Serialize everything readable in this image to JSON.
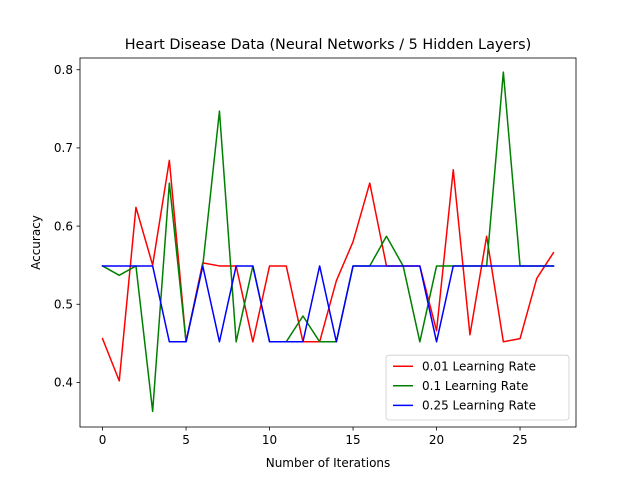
{
  "chart_data": {
    "type": "line",
    "title": "Heart Disease Data (Neural Networks / 5 Hidden Layers)",
    "xlabel": "Number of Iterations",
    "ylabel": "Accuracy",
    "xlim": [
      -1.35,
      28.35
    ],
    "ylim": [
      0.343,
      0.815
    ],
    "xticks": [
      0,
      5,
      10,
      15,
      20,
      25
    ],
    "yticks": [
      0.4,
      0.5,
      0.6,
      0.7,
      0.8
    ],
    "ytick_labels": [
      "0.4",
      "0.5",
      "0.6",
      "0.7",
      "0.8"
    ],
    "grid": false,
    "legend_position": "lower right",
    "x": [
      0,
      1,
      2,
      3,
      4,
      5,
      6,
      7,
      8,
      9,
      10,
      11,
      12,
      13,
      14,
      15,
      16,
      17,
      18,
      19,
      20,
      21,
      22,
      23,
      24,
      25,
      26,
      27
    ],
    "series": [
      {
        "name": "0.01 Learning Rate",
        "color": "#ff0000",
        "values": [
          0.456,
          0.402,
          0.624,
          0.55,
          0.684,
          0.452,
          0.553,
          0.549,
          0.549,
          0.452,
          0.549,
          0.549,
          0.452,
          0.452,
          0.53,
          0.58,
          0.655,
          0.549,
          0.549,
          0.549,
          0.466,
          0.672,
          0.461,
          0.587,
          0.452,
          0.456,
          0.533,
          0.566
        ]
      },
      {
        "name": "0.1 Learning Rate",
        "color": "#008000",
        "values": [
          0.549,
          0.537,
          0.549,
          0.363,
          0.655,
          0.452,
          0.549,
          0.747,
          0.452,
          0.549,
          0.452,
          0.452,
          0.485,
          0.452,
          0.452,
          0.549,
          0.549,
          0.587,
          0.549,
          0.452,
          0.549,
          0.549,
          0.549,
          0.549,
          0.797,
          0.549,
          0.549,
          0.549
        ]
      },
      {
        "name": "0.25 Learning Rate",
        "color": "#0000ff",
        "values": [
          0.549,
          0.549,
          0.549,
          0.549,
          0.452,
          0.452,
          0.549,
          0.452,
          0.549,
          0.549,
          0.452,
          0.452,
          0.452,
          0.549,
          0.452,
          0.549,
          0.549,
          0.549,
          0.549,
          0.549,
          0.452,
          0.549,
          0.549,
          0.549,
          0.549,
          0.549,
          0.549,
          0.549
        ]
      }
    ]
  }
}
